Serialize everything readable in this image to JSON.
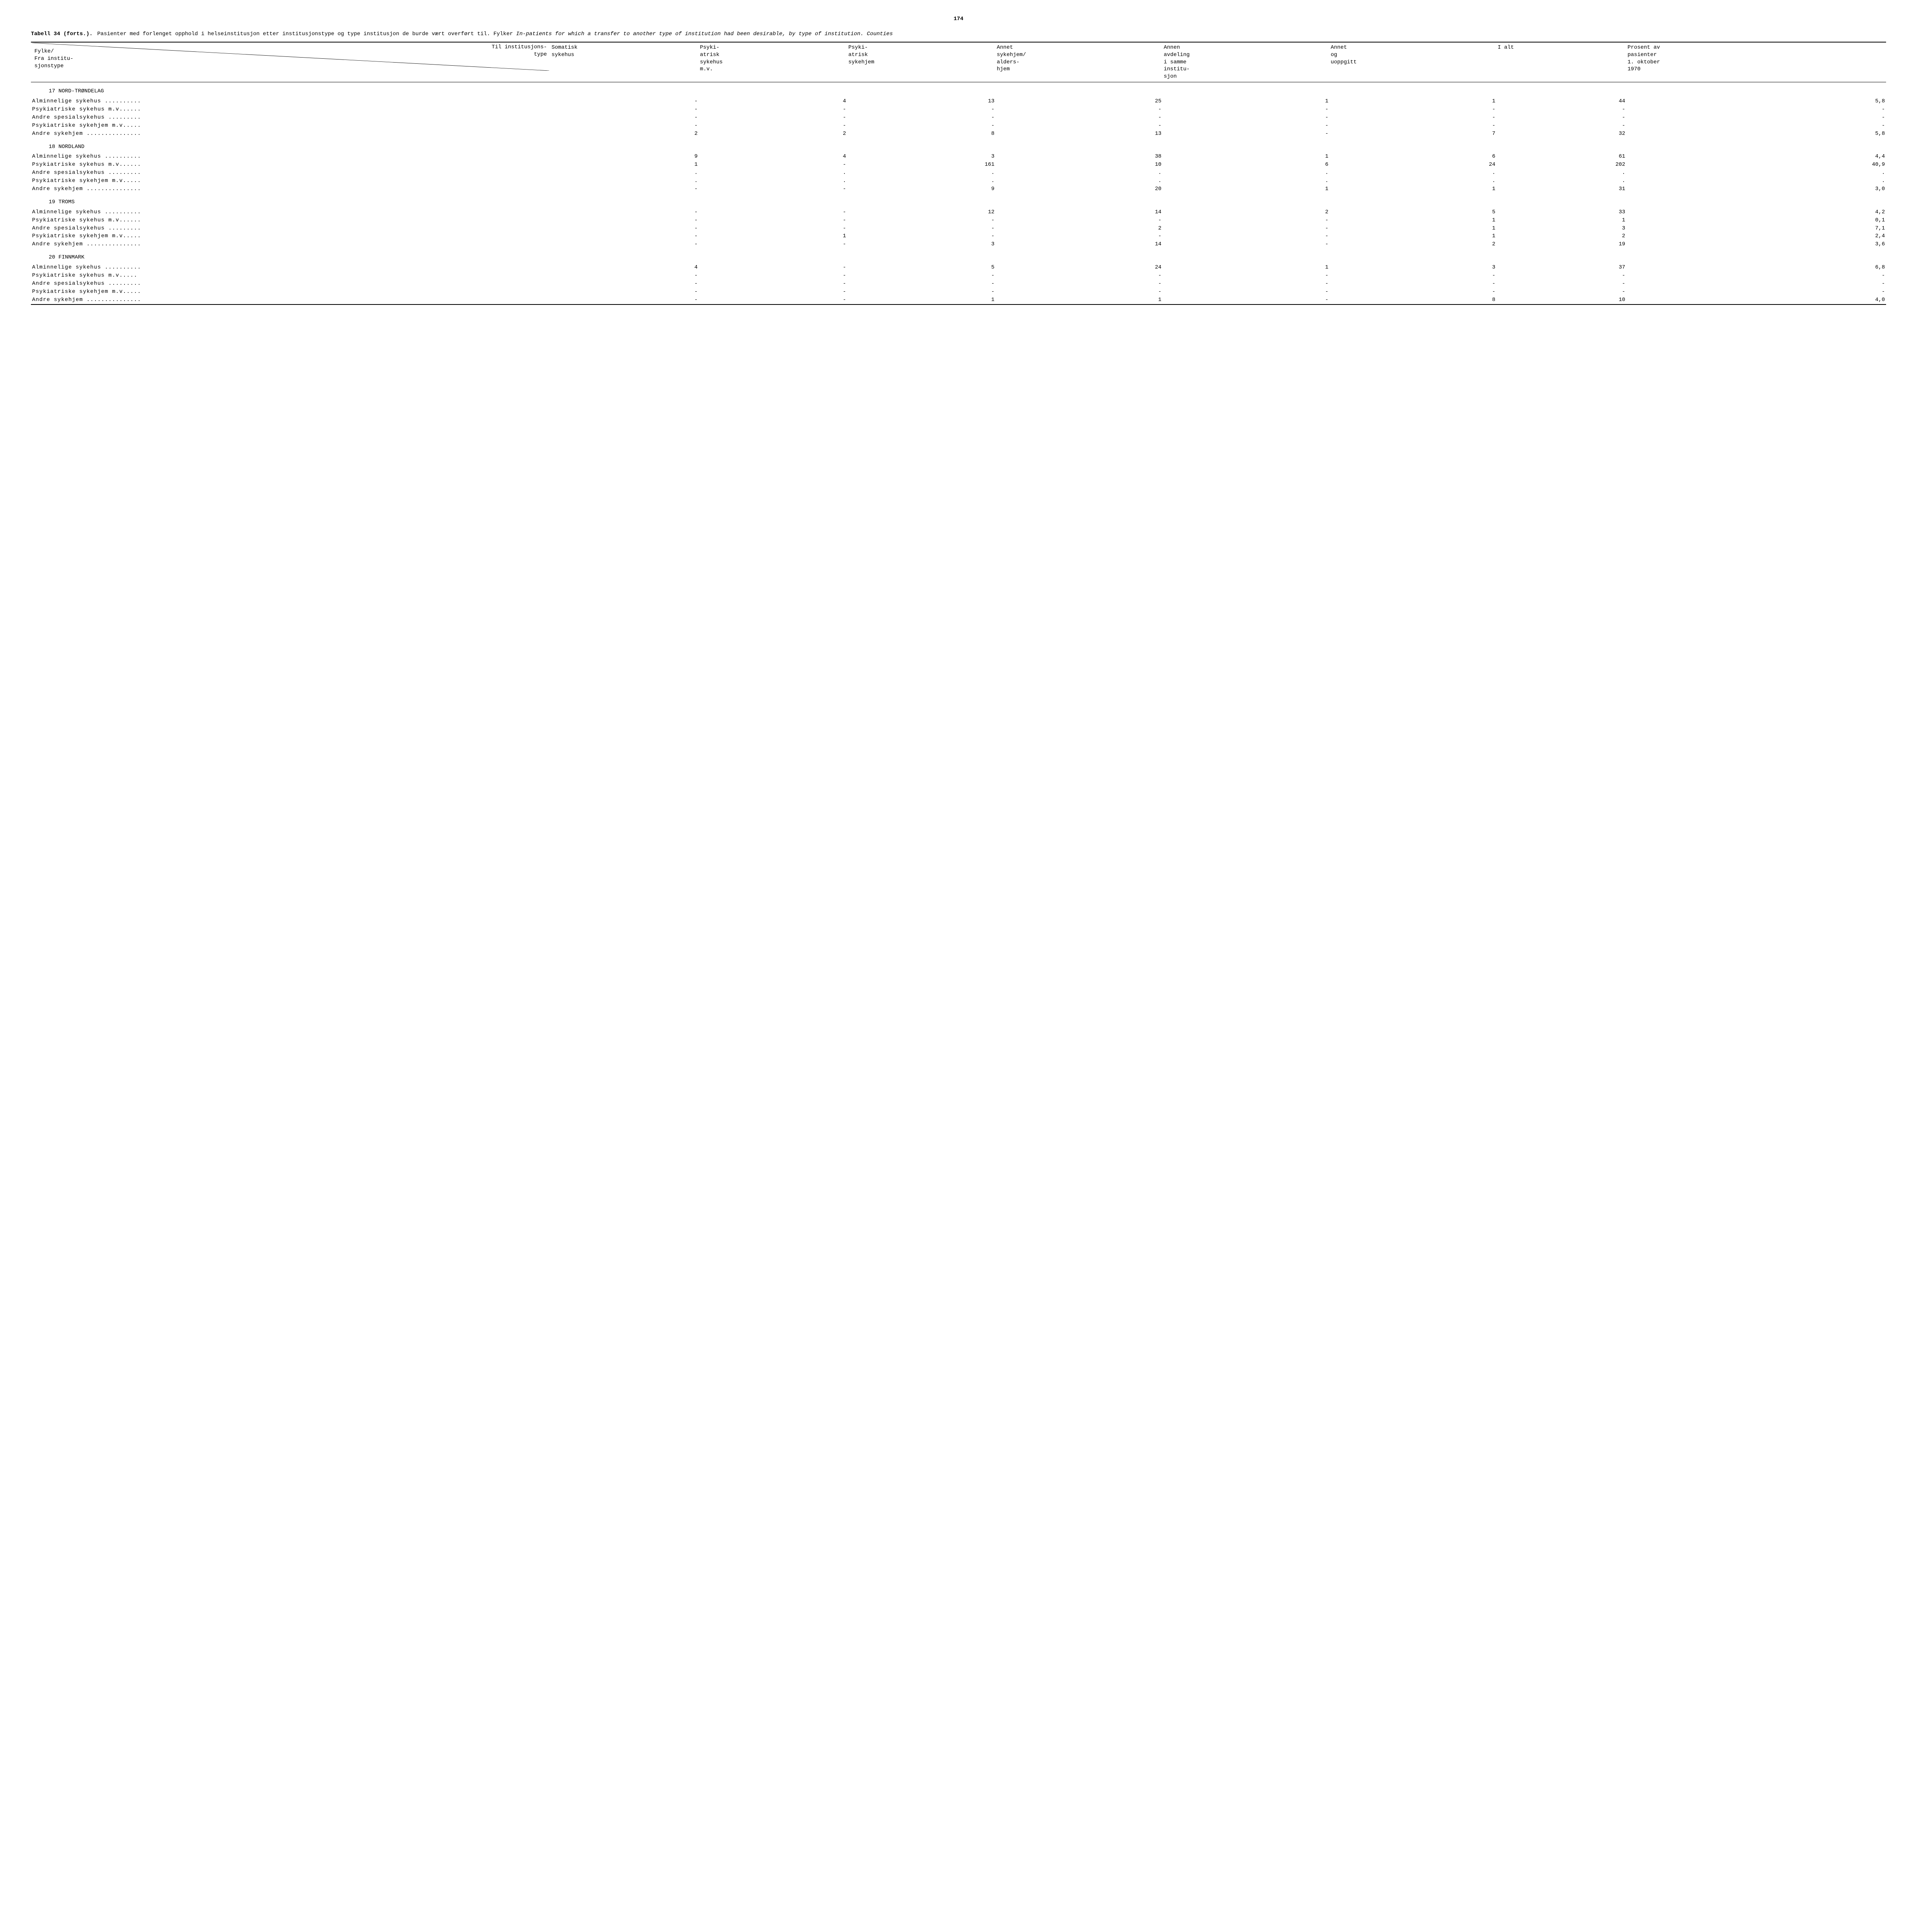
{
  "page_number": "174",
  "title_label": "Tabell 34 (forts.).",
  "title_main": "Pasienter med forlenget opphold i helseinstitusjon etter institusjonstype og type institusjon de burde vært overført til.  Fylker",
  "title_italic": "In-patients for which a transfer to another type of institution had been desirable, by type of institution. Counties",
  "header_diag_top": "Til institusjons-\ntype",
  "header_diag_bot": "Fylke/\nFra institu-\nsjonstype",
  "columns": [
    "Somatisk\nsykehus",
    "Psyki-\natrisk\nsykehus\nm.v.",
    "Psyki-\natrisk\nsykehjem",
    "Annet\nsykehjem/\nalders-\nhjem",
    "Annen\navdeling\ni samme\ninstitu-\nsjon",
    "Annet\nog\nuoppgitt",
    "I alt",
    "Prosent av\npasienter\n1. oktober\n1970"
  ],
  "sections": [
    {
      "heading": "17  NORD-TRØNDELAG",
      "rows": [
        {
          "label": "Alminnelige sykehus ..........",
          "cells": [
            "-",
            "4",
            "13",
            "25",
            "1",
            "1",
            "44",
            "5,8"
          ]
        },
        {
          "label": "Psykiatriske sykehus m.v......",
          "cells": [
            "-",
            "-",
            "-",
            "-",
            "-",
            "-",
            "-",
            "-"
          ]
        },
        {
          "label": "Andre spesialsykehus .........",
          "cells": [
            "-",
            "-",
            "-",
            "-",
            "-",
            "-",
            "-",
            "-"
          ]
        },
        {
          "label": "Psykiatriske sykehjem m.v.....",
          "cells": [
            "-",
            "-",
            "-",
            "-",
            "-",
            "-",
            "-",
            "-"
          ]
        },
        {
          "label": "Andre sykehjem ...............",
          "cells": [
            "2",
            "2",
            "8",
            "13",
            "-",
            "7",
            "32",
            "5,8"
          ]
        }
      ]
    },
    {
      "heading": "18  NORDLAND",
      "rows": [
        {
          "label": "Alminnelige sykehus ..........",
          "cells": [
            "9",
            "4",
            "3",
            "38",
            "1",
            "6",
            "61",
            "4,4"
          ]
        },
        {
          "label": "Psykiatriske sykehus m.v......",
          "cells": [
            "1",
            "-",
            "161",
            "10",
            "6",
            "24",
            "202",
            "40,9"
          ]
        },
        {
          "label": "Andre spesialsykehus .........",
          "cells": [
            ".",
            ".",
            ".",
            ".",
            ".",
            ".",
            ".",
            "."
          ]
        },
        {
          "label": "Psykiatriske sykehjem m.v.....",
          "cells": [
            ".",
            ".",
            ".",
            ".",
            ".",
            ".",
            ".",
            "."
          ]
        },
        {
          "label": "Andre sykehjem ...............",
          "cells": [
            "-",
            "-",
            "9",
            "20",
            "1",
            "1",
            "31",
            "3,0"
          ]
        }
      ]
    },
    {
      "heading": "19  TROMS",
      "rows": [
        {
          "label": "Alminnelige sykehus ..........",
          "cells": [
            "-",
            "-",
            "12",
            "14",
            "2",
            "5",
            "33",
            "4,2"
          ]
        },
        {
          "label": "Psykiatriske sykehus m.v......",
          "cells": [
            "-",
            "-",
            "-",
            "-",
            "-",
            "1",
            "1",
            "0,1"
          ]
        },
        {
          "label": "Andre spesialsykehus .........",
          "cells": [
            "-",
            "-",
            "-",
            "2",
            "-",
            "1",
            "3",
            "7,1"
          ]
        },
        {
          "label": "Psykiatriske sykehjem m.v.....",
          "cells": [
            "-",
            "1",
            "-",
            "-",
            "-",
            "1",
            "2",
            "2,4"
          ]
        },
        {
          "label": "Andre sykehjem ...............",
          "cells": [
            "-",
            "-",
            "3",
            "14",
            "-",
            "2",
            "19",
            "3,6"
          ]
        }
      ]
    },
    {
      "heading": "20  FINNMARK",
      "rows": [
        {
          "label": "Alminnelige sykehus ..........",
          "cells": [
            "4",
            "-",
            "5",
            "24",
            "1",
            "3",
            "37",
            "6,8"
          ]
        },
        {
          "label": "Psykiatriske sykehus  m.v.....",
          "cells": [
            "-",
            "-",
            "-",
            "-",
            "-",
            "-",
            "-",
            "-"
          ]
        },
        {
          "label": "Andre spesialsykehus .........",
          "cells": [
            "-",
            "-",
            "-",
            "-",
            "-",
            "-",
            "-",
            "-"
          ]
        },
        {
          "label": "Psykiatriske sykehjem m.v.....",
          "cells": [
            "-",
            "-",
            "-",
            "-",
            "-",
            "-",
            "-",
            "-"
          ]
        },
        {
          "label": "Andre sykehjem ...............",
          "cells": [
            "-",
            "-",
            "1",
            "1",
            "-",
            "8",
            "10",
            "4,0"
          ]
        }
      ]
    }
  ],
  "style": {
    "font_family": "Courier New, monospace",
    "text_color": "#000000",
    "background_color": "#ffffff",
    "rule_color": "#000000"
  }
}
